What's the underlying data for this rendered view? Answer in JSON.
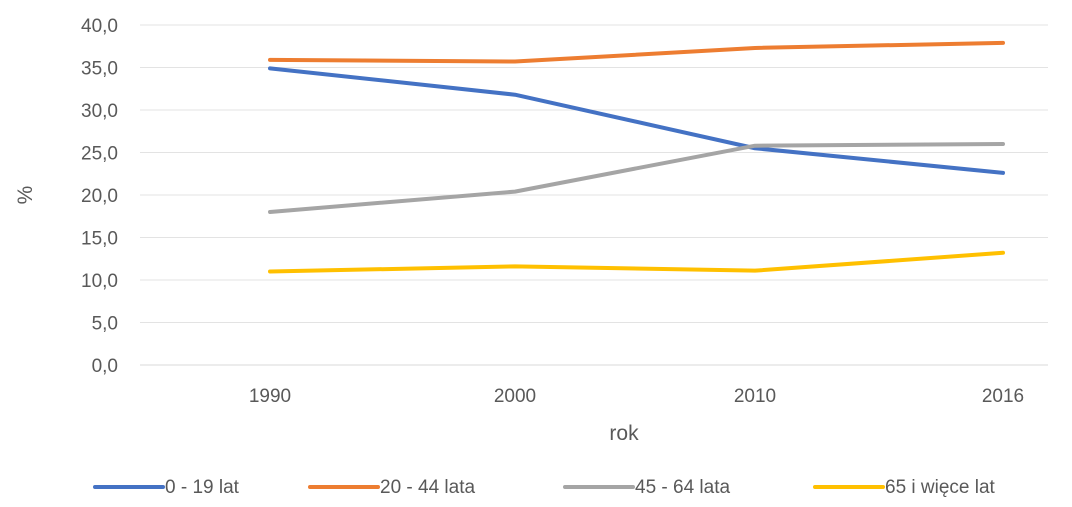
{
  "chart_data": {
    "type": "line",
    "title": "",
    "xlabel": "rok",
    "ylabel": "%",
    "categories": [
      "1990",
      "2000",
      "2010",
      "2016"
    ],
    "y_ticks": [
      "0,0",
      "5,0",
      "10,0",
      "15,0",
      "20,0",
      "25,0",
      "30,0",
      "35,0",
      "40,0"
    ],
    "ylim": [
      0,
      40
    ],
    "grid": true,
    "legend_position": "bottom",
    "series": [
      {
        "name": "0 - 19 lat",
        "color": "#4472c4",
        "values": [
          34.9,
          31.8,
          25.5,
          22.6
        ]
      },
      {
        "name": "20 - 44 lata",
        "color": "#ed7d31",
        "values": [
          35.9,
          35.7,
          37.3,
          37.9
        ]
      },
      {
        "name": "45 - 64 lata",
        "color": "#a5a5a5",
        "values": [
          18.0,
          20.4,
          25.8,
          26.0
        ]
      },
      {
        "name": "65 i więce lat",
        "color": "#ffc000",
        "values": [
          11.0,
          11.6,
          11.1,
          13.2
        ]
      }
    ]
  }
}
